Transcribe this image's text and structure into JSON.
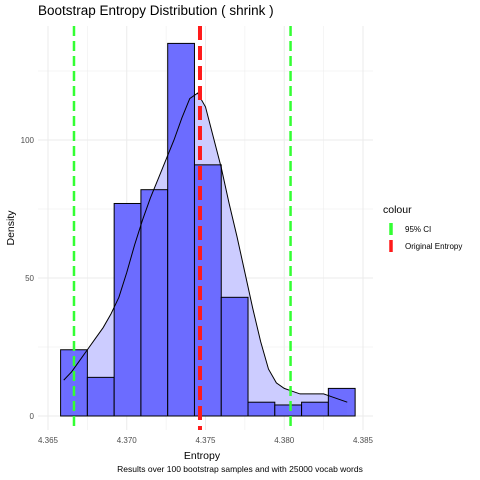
{
  "chart_data": {
    "type": "histogram",
    "title": "Bootstrap Entropy Distribution ( shrink )",
    "xlabel": "Entropy",
    "ylabel": "Density",
    "caption": "Results over 100 bootstrap samples and with 25000 vocab words",
    "xlim": [
      4.365,
      4.385
    ],
    "ylim": [
      -5,
      140
    ],
    "x_ticks": [
      "4.365",
      "4.370",
      "4.375",
      "4.380",
      "4.385"
    ],
    "x_tick_values": [
      4.365,
      4.37,
      4.375,
      4.38,
      4.385
    ],
    "y_ticks": [
      "0",
      "50",
      "100"
    ],
    "y_tick_values": [
      0,
      50,
      100
    ],
    "grid": true,
    "bins": [
      {
        "x0": 4.3658,
        "x1": 4.3675,
        "density": 24
      },
      {
        "x0": 4.3675,
        "x1": 4.3692,
        "density": 14
      },
      {
        "x0": 4.3692,
        "x1": 4.3709,
        "density": 77
      },
      {
        "x0": 4.3709,
        "x1": 4.3726,
        "density": 82
      },
      {
        "x0": 4.3726,
        "x1": 4.3743,
        "density": 135
      },
      {
        "x0": 4.3743,
        "x1": 4.376,
        "density": 91
      },
      {
        "x0": 4.376,
        "x1": 4.3777,
        "density": 43
      },
      {
        "x0": 4.3777,
        "x1": 4.3794,
        "density": 5
      },
      {
        "x0": 4.3794,
        "x1": 4.3811,
        "density": 4
      },
      {
        "x0": 4.3811,
        "x1": 4.3828,
        "density": 5
      },
      {
        "x0": 4.3828,
        "x1": 4.3845,
        "density": 10
      }
    ],
    "density_curve": {
      "x": [
        4.366,
        4.3665,
        4.367,
        4.3675,
        4.368,
        4.3685,
        4.369,
        4.3695,
        4.37,
        4.3705,
        4.371,
        4.3715,
        4.372,
        4.3725,
        4.373,
        4.3735,
        4.374,
        4.3745,
        4.375,
        4.3755,
        4.376,
        4.3765,
        4.377,
        4.3775,
        4.378,
        4.3785,
        4.379,
        4.3795,
        4.38,
        4.3805,
        4.381,
        4.3815,
        4.382,
        4.3825,
        4.383,
        4.3835,
        4.384
      ],
      "y": [
        13,
        16,
        20,
        24,
        28,
        32,
        37,
        43,
        52,
        62,
        71,
        79,
        86,
        93,
        100,
        108,
        115,
        117,
        112,
        101,
        90,
        77,
        65,
        52,
        39,
        27,
        17,
        12,
        10,
        9,
        8,
        8,
        8,
        8,
        7,
        6,
        5
      ]
    },
    "vlines": [
      {
        "x": 4.36665,
        "name": "95% CI",
        "color": "#33ff33",
        "style": "dashed"
      },
      {
        "x": 4.3804,
        "name": "95% CI",
        "color": "#33ff33",
        "style": "dashed"
      },
      {
        "x": 4.37465,
        "name": "Original Entropy",
        "color": "#ff1a1a",
        "style": "dashed"
      }
    ],
    "legend": {
      "title": "colour",
      "placement": "right",
      "entries": [
        {
          "label": "95% CI",
          "color": "#33ff33"
        },
        {
          "label": "Original Entropy",
          "color": "#ff1a1a"
        }
      ]
    },
    "colors": {
      "bar_fill": "#6666ff",
      "bar_stroke": "#000000",
      "density_fill": "#ccccff",
      "density_stroke": "#000000",
      "grid": "#ebebeb"
    }
  }
}
